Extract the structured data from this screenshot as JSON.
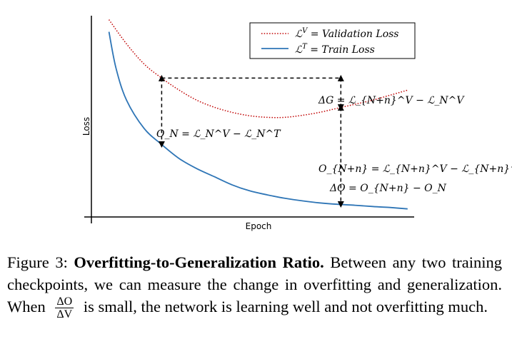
{
  "chart_data": {
    "type": "line",
    "xlabel": "Epoch",
    "ylabel": "Loss",
    "series": [
      {
        "name": "L^V = Validation Loss",
        "color": "#c00000",
        "style": "dotted",
        "points": [
          [
            0.05,
            0.98
          ],
          [
            0.1,
            0.86
          ],
          [
            0.15,
            0.76
          ],
          [
            0.2,
            0.69
          ],
          [
            0.25,
            0.63
          ],
          [
            0.3,
            0.58
          ],
          [
            0.35,
            0.545
          ],
          [
            0.4,
            0.52
          ],
          [
            0.45,
            0.503
          ],
          [
            0.5,
            0.495
          ],
          [
            0.55,
            0.495
          ],
          [
            0.6,
            0.505
          ],
          [
            0.65,
            0.52
          ],
          [
            0.7,
            0.54
          ],
          [
            0.75,
            0.56
          ],
          [
            0.8,
            0.58
          ],
          [
            0.85,
            0.605
          ],
          [
            0.9,
            0.63
          ]
        ]
      },
      {
        "name": "L^T = Train Loss",
        "color": "#2e75b6",
        "style": "solid",
        "points": [
          [
            0.05,
            0.92
          ],
          [
            0.07,
            0.74
          ],
          [
            0.1,
            0.58
          ],
          [
            0.15,
            0.44
          ],
          [
            0.2,
            0.36
          ],
          [
            0.25,
            0.29
          ],
          [
            0.3,
            0.24
          ],
          [
            0.35,
            0.2
          ],
          [
            0.4,
            0.16
          ],
          [
            0.45,
            0.13
          ],
          [
            0.5,
            0.11
          ],
          [
            0.55,
            0.093
          ],
          [
            0.6,
            0.08
          ],
          [
            0.65,
            0.07
          ],
          [
            0.7,
            0.063
          ],
          [
            0.75,
            0.058
          ],
          [
            0.8,
            0.052
          ],
          [
            0.85,
            0.047
          ],
          [
            0.9,
            0.04
          ]
        ]
      }
    ],
    "legend": {
      "placement": "top-right",
      "entries": [
        {
          "lhs": "ℒ",
          "sup": "V",
          "rhs": " = Validation Loss"
        },
        {
          "lhs": "ℒ",
          "sup": "T",
          "rhs": " = Train Loss"
        }
      ]
    },
    "annotations": {
      "on": "O_N = ℒ_N^V − ℒ_N^T",
      "dg": "ΔG = ℒ_{N+n}^V − ℒ_N^V",
      "onn": "O_{N+n} = ℒ_{N+n}^V − ℒ_{N+n}^T",
      "do": "ΔO = O_{N+n} − O_N"
    },
    "checkpoints": {
      "N": 0.2,
      "N_plus_n": 0.71
    }
  },
  "caption": {
    "label": "Figure 3: ",
    "title": "Overfitting-to-Generalization Ratio.",
    "body_1": " Between any two training checkpoints, we can measure the change in overfitting and generalization. When ",
    "frac_num": "ΔO",
    "frac_den": "ΔV",
    "body_2": " is small, the network is learning well and not overfitting much."
  }
}
